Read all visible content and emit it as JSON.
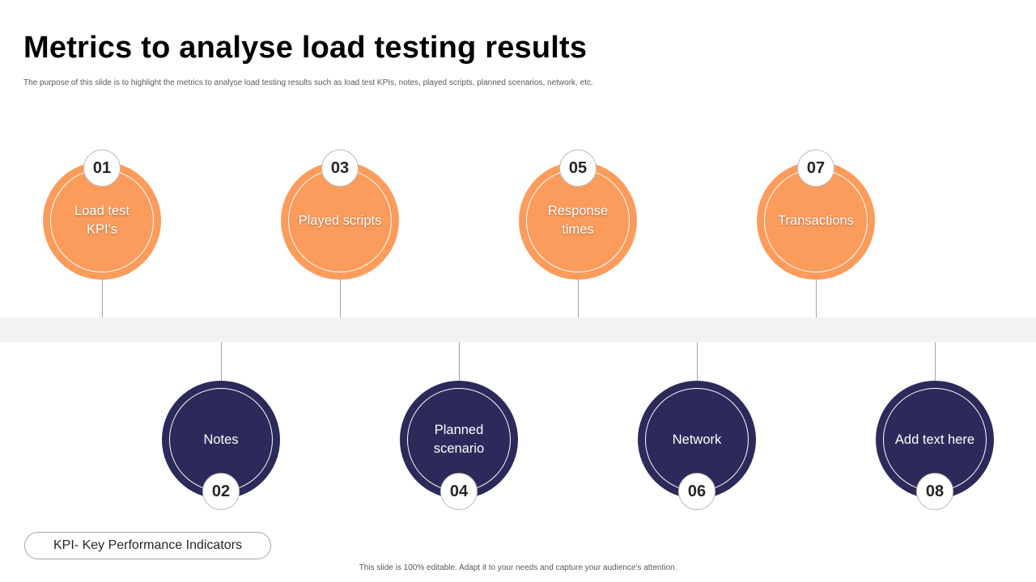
{
  "slide": {
    "title": "Metrics to analyse load testing results",
    "subtitle": "The purpose of this slide is to highlight the metrics to analyse load testing results such as load test KPIs, notes, played scripts, planned scenarios, network, etc.",
    "kpi_note": "KPI- Key Performance Indicators",
    "footer": "This slide is 100% editable. Adapt it to your needs and capture your audience's attention."
  },
  "colors": {
    "orange": "#fb9c5c",
    "navy": "#2b2a5a",
    "band": "#f2f2f2"
  },
  "metrics": [
    {
      "number": "01",
      "label": "Load test KPI's"
    },
    {
      "number": "02",
      "label": "Notes"
    },
    {
      "number": "03",
      "label": "Played scripts"
    },
    {
      "number": "04",
      "label": "Planned scenario"
    },
    {
      "number": "05",
      "label": "Response times"
    },
    {
      "number": "06",
      "label": "Network"
    },
    {
      "number": "07",
      "label": "Transactions"
    },
    {
      "number": "08",
      "label": "Add text here"
    }
  ]
}
